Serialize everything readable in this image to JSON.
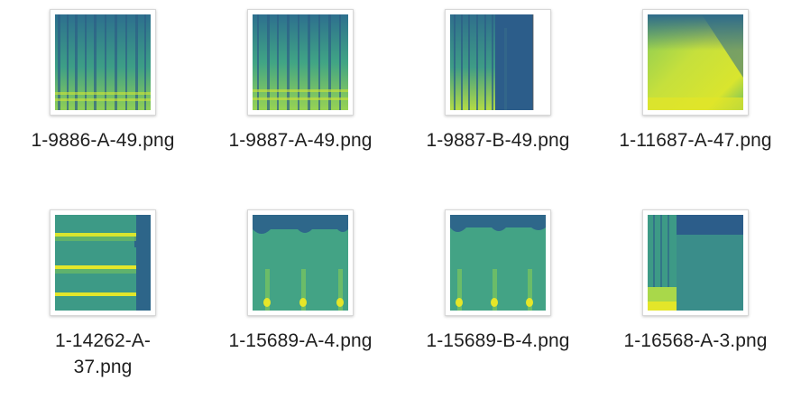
{
  "files": [
    {
      "name": "1-9886-A-49.png",
      "thumbnail": "spectrogram image"
    },
    {
      "name": "1-9887-A-49.png",
      "thumbnail": "spectrogram image"
    },
    {
      "name": "1-9887-B-49.png",
      "thumbnail": "spectrogram image"
    },
    {
      "name": "1-11687-A-47.png",
      "thumbnail": "spectrogram image"
    },
    {
      "name": "1-14262-A-37.png",
      "thumbnail": "spectrogram image"
    },
    {
      "name": "1-15689-A-4.png",
      "thumbnail": "spectrogram image"
    },
    {
      "name": "1-15689-B-4.png",
      "thumbnail": "spectrogram image"
    },
    {
      "name": "1-16568-A-3.png",
      "thumbnail": "spectrogram image"
    }
  ],
  "colors": {
    "background": "#ffffff",
    "label_text": "#1f1f1f",
    "thumb_border": "#d8d8d8",
    "spectro_dark": "#2c5d8a",
    "spectro_mid": "#3f9e87",
    "spectro_bright": "#a7d64c",
    "spectro_peak": "#e8e623"
  }
}
